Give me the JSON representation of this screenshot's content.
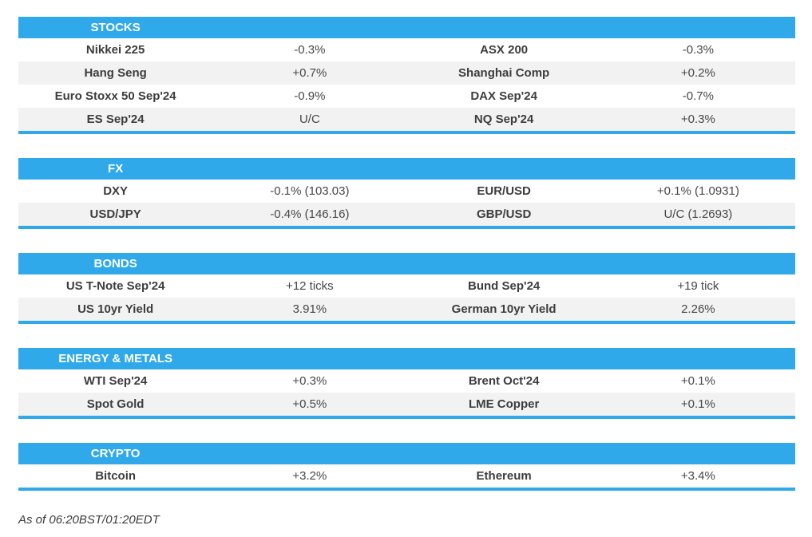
{
  "colors": {
    "accent_blue": "#2fa9ea",
    "row_alt": "#f2f2f2",
    "label_color": "#3d3d3d",
    "value_color": "#474747"
  },
  "sections": [
    {
      "title": "STOCKS",
      "rows": [
        {
          "cells": [
            "Nikkei 225",
            "-0.3%",
            "ASX 200",
            "-0.3%"
          ]
        },
        {
          "cells": [
            "Hang Seng",
            "+0.7%",
            "Shanghai Comp",
            "+0.2%"
          ]
        },
        {
          "cells": [
            "Euro Stoxx 50 Sep'24",
            "-0.9%",
            "DAX Sep'24",
            "-0.7%"
          ]
        },
        {
          "cells": [
            "ES Sep'24",
            "U/C",
            "NQ Sep'24",
            "+0.3%"
          ]
        }
      ]
    },
    {
      "title": "FX",
      "rows": [
        {
          "cells": [
            "DXY",
            "-0.1% (103.03)",
            "EUR/USD",
            "+0.1% (1.0931)"
          ]
        },
        {
          "cells": [
            "USD/JPY",
            "-0.4% (146.16)",
            "GBP/USD",
            "U/C (1.2693)"
          ]
        }
      ]
    },
    {
      "title": "BONDS",
      "rows": [
        {
          "cells": [
            "US T-Note Sep'24",
            "+12 ticks",
            "Bund Sep'24",
            "+19 tick"
          ]
        },
        {
          "cells": [
            "US 10yr Yield",
            "3.91%",
            "German 10yr Yield",
            "2.26%"
          ]
        }
      ]
    },
    {
      "title": "ENERGY & METALS",
      "rows": [
        {
          "cells": [
            "WTI Sep'24",
            "+0.3%",
            "Brent Oct'24",
            "+0.1%"
          ]
        },
        {
          "cells": [
            "Spot Gold",
            "+0.5%",
            "LME Copper",
            "+0.1%"
          ]
        }
      ]
    },
    {
      "title": "CRYPTO",
      "rows": [
        {
          "cells": [
            "Bitcoin",
            "+3.2%",
            "Ethereum",
            "+3.4%"
          ]
        }
      ]
    }
  ],
  "footer": {
    "as_of": "As of 06:20BST/01:20EDT"
  }
}
